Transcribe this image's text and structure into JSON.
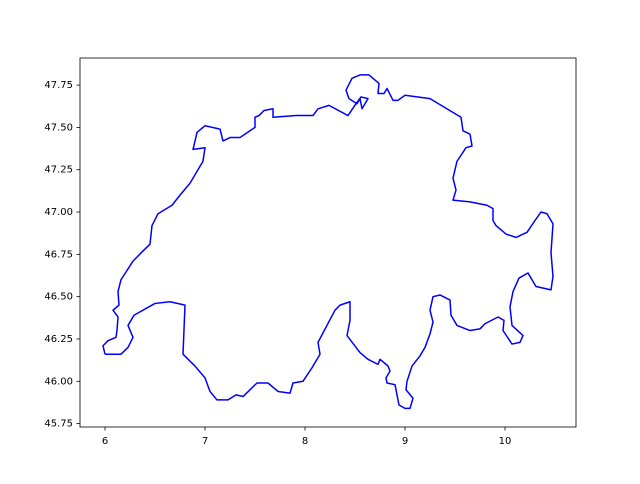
{
  "chart_data": {
    "type": "line",
    "x": [
      6.0,
      6.16,
      6.23,
      6.28,
      6.23,
      6.29,
      6.5,
      6.65,
      6.8,
      6.78,
      6.9,
      7.0,
      7.05,
      7.12,
      7.23,
      7.31,
      7.38,
      7.52,
      7.63,
      7.73,
      7.85,
      7.88,
      7.98,
      8.07,
      8.15,
      8.13,
      8.3,
      8.35,
      8.45,
      8.45,
      8.42,
      8.55,
      8.63,
      8.73,
      8.75,
      8.83,
      8.85,
      8.81,
      8.82,
      8.9,
      8.94,
      9.0,
      9.05,
      9.08,
      9.01,
      9.02,
      9.07,
      9.15,
      9.2,
      9.25,
      9.28,
      9.25,
      9.28,
      9.35,
      9.45,
      9.46,
      9.52,
      9.65,
      9.75,
      9.8,
      9.93,
      9.99,
      9.98,
      10.07,
      10.15,
      10.18,
      10.07,
      10.05,
      10.08,
      10.14,
      10.23,
      10.27,
      10.31,
      10.46,
      10.48,
      10.46,
      10.48,
      10.42,
      10.36,
      10.3,
      10.22,
      10.11,
      10.01,
      9.91,
      9.88,
      9.88,
      9.82,
      9.65,
      9.48,
      9.51,
      9.48,
      9.52,
      9.61,
      9.67,
      9.65,
      9.58,
      9.56,
      9.25,
      9.0,
      8.93,
      8.88,
      8.82,
      8.79,
      8.73,
      8.74,
      8.64,
      8.55,
      8.47,
      8.41,
      8.44,
      8.52,
      8.55,
      8.57,
      8.63,
      8.56,
      8.51,
      8.43,
      8.24,
      8.13,
      8.08,
      7.91,
      7.68,
      7.68,
      7.59,
      7.54,
      7.5,
      7.5,
      7.4,
      7.35,
      7.25,
      7.18,
      7.15,
      7.0,
      6.92,
      6.88,
      7.0,
      6.98,
      6.85,
      6.75,
      6.67,
      6.53,
      6.47,
      6.45,
      6.38,
      6.28,
      6.16,
      6.13,
      6.14,
      6.08,
      6.13,
      6.12,
      6.11,
      6.03,
      5.98,
      6.0
    ],
    "values": [
      46.16,
      46.16,
      46.2,
      46.26,
      46.33,
      46.39,
      46.46,
      46.47,
      46.45,
      46.16,
      46.09,
      46.02,
      45.94,
      45.89,
      45.89,
      45.92,
      45.91,
      45.99,
      45.99,
      45.94,
      45.93,
      45.99,
      46.0,
      46.08,
      46.16,
      46.23,
      46.42,
      46.45,
      46.47,
      46.36,
      46.27,
      46.17,
      46.13,
      46.1,
      46.13,
      46.09,
      46.06,
      46.02,
      45.99,
      45.98,
      45.86,
      45.84,
      45.84,
      45.9,
      45.95,
      46.0,
      46.09,
      46.15,
      46.2,
      46.28,
      46.35,
      46.42,
      46.5,
      46.51,
      46.48,
      46.39,
      46.33,
      46.3,
      46.31,
      46.34,
      46.38,
      46.36,
      46.3,
      46.22,
      46.23,
      46.27,
      46.33,
      46.44,
      46.53,
      46.61,
      46.64,
      46.6,
      46.56,
      46.54,
      46.62,
      46.76,
      46.93,
      46.99,
      47.0,
      46.95,
      46.88,
      46.85,
      46.87,
      46.92,
      46.95,
      47.02,
      47.04,
      47.06,
      47.07,
      47.13,
      47.2,
      47.3,
      47.38,
      47.39,
      47.46,
      47.48,
      47.56,
      47.67,
      47.69,
      47.66,
      47.66,
      47.73,
      47.7,
      47.7,
      47.76,
      47.81,
      47.81,
      47.79,
      47.72,
      47.67,
      47.64,
      47.67,
      47.61,
      47.67,
      47.68,
      47.64,
      47.57,
      47.63,
      47.61,
      47.57,
      47.57,
      47.56,
      47.61,
      47.6,
      47.57,
      47.56,
      47.5,
      47.46,
      47.44,
      47.44,
      47.42,
      47.49,
      47.51,
      47.47,
      47.37,
      47.38,
      47.3,
      47.17,
      47.1,
      47.04,
      46.99,
      46.92,
      46.81,
      46.77,
      46.71,
      46.6,
      46.53,
      46.45,
      46.42,
      46.38,
      46.3,
      46.26,
      46.24,
      46.21,
      46.16
    ],
    "color": "#0000ff",
    "xlim": [
      5.75,
      10.71
    ],
    "ylim": [
      45.73,
      47.91
    ],
    "xticks": [
      6,
      7,
      8,
      9,
      10
    ],
    "yticks": [
      45.75,
      {
        "value": 46,
        "label": "46.00"
      },
      46.25,
      {
        "value": 46.5,
        "label": "46.50"
      },
      46.75,
      {
        "value": 47,
        "label": "47.00"
      },
      47.25,
      {
        "value": 47.5,
        "label": "47.50"
      },
      47.75
    ],
    "grid": false
  }
}
